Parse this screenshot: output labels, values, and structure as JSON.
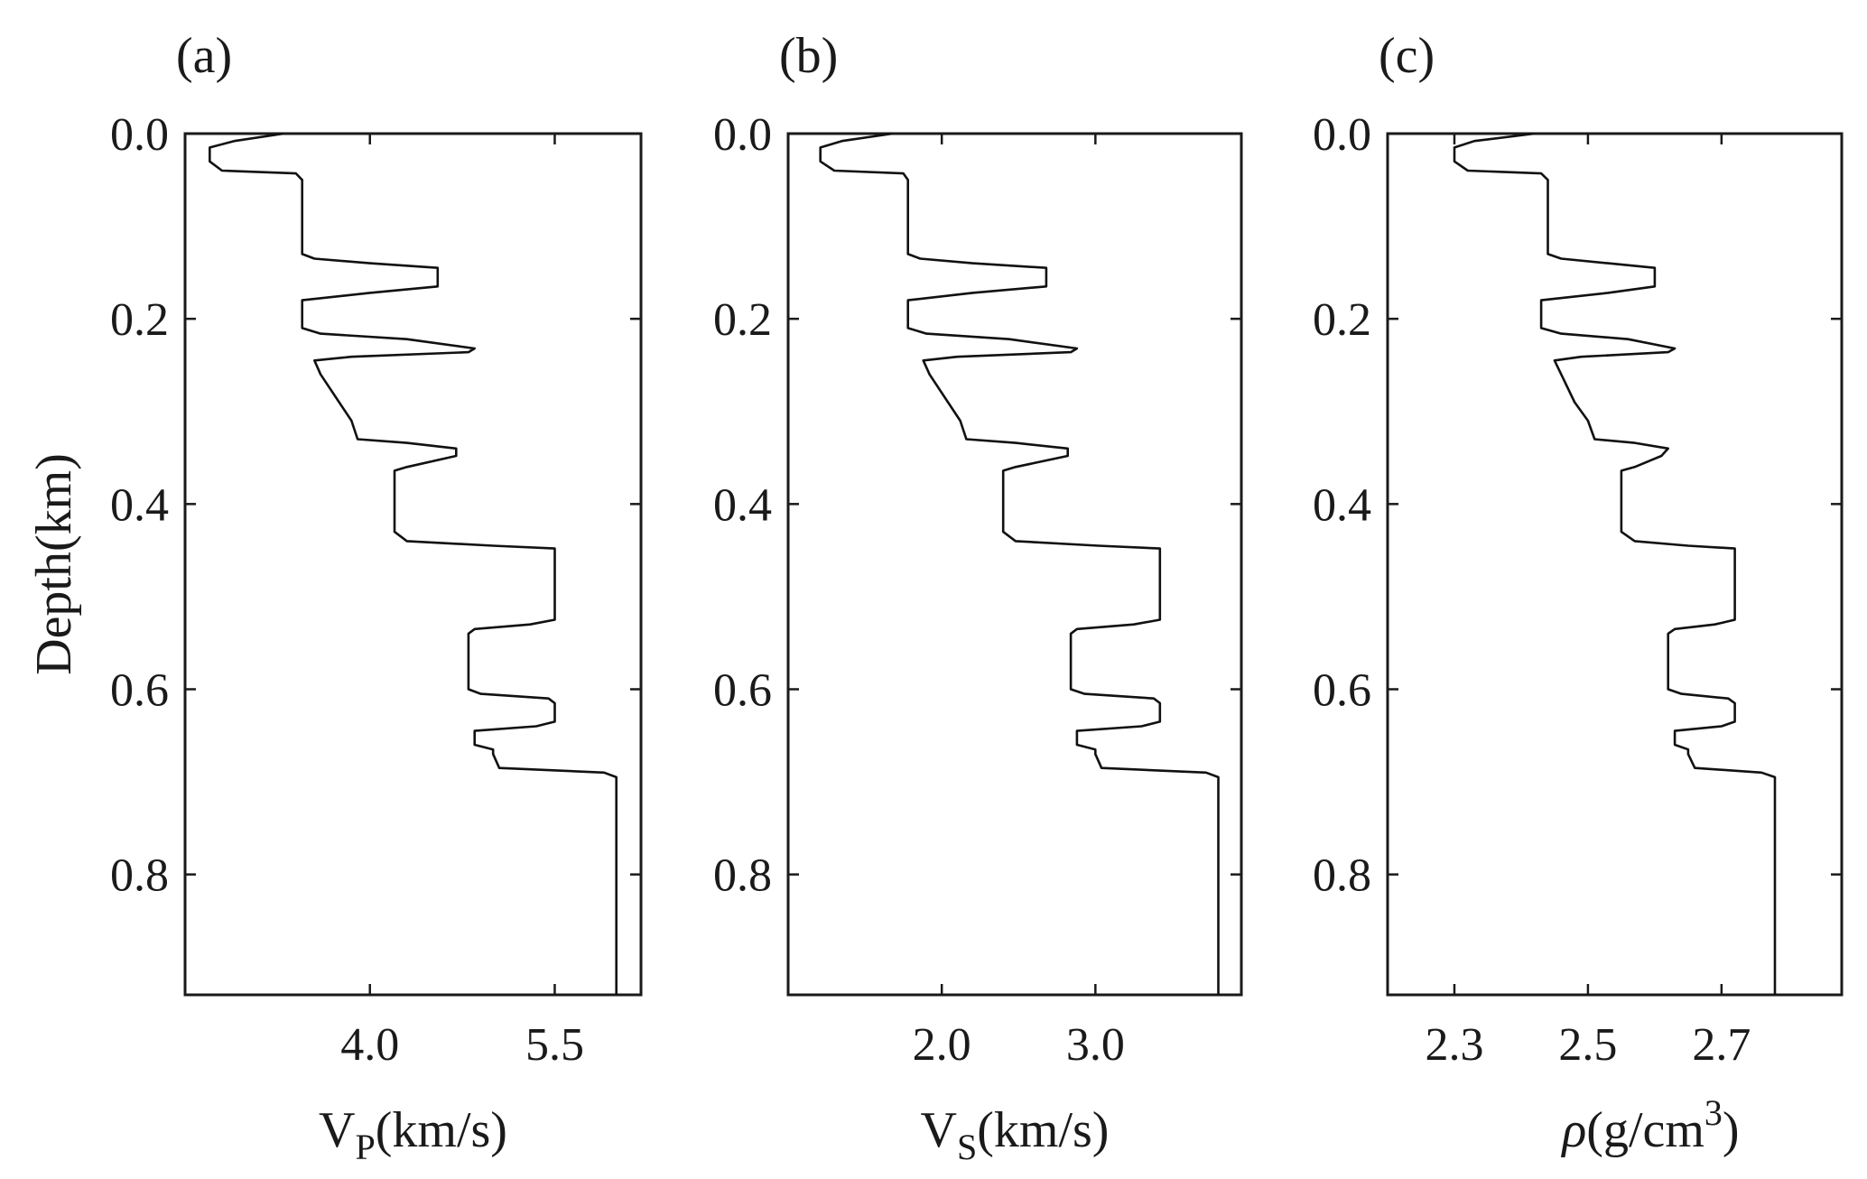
{
  "chart_data": [
    {
      "type": "line",
      "panel_label": "(a)",
      "ylabel": "Depth(km)",
      "xlabel_main": "V",
      "xlabel_sub": "P",
      "xlabel_rest": "(km/s)",
      "xlabel_sup": "",
      "xticks": [
        "4.0",
        "5.5"
      ],
      "xtick_values": [
        4.0,
        5.5
      ],
      "xlim": [
        2.5,
        6.2
      ],
      "yticks": [
        "0.0",
        "0.2",
        "0.4",
        "0.6",
        "0.8"
      ],
      "ytick_values": [
        0.0,
        0.2,
        0.4,
        0.6,
        0.8
      ],
      "ylim": [
        0.0,
        0.93
      ],
      "y_reversed": true,
      "grid": false,
      "series": [
        {
          "x": [
            3.3,
            2.9,
            2.7,
            2.7,
            2.8,
            3.4,
            3.45,
            3.45,
            3.45,
            3.55,
            4.0,
            4.55,
            4.55,
            4.0,
            3.45,
            3.45,
            3.45,
            3.6,
            4.3,
            4.85,
            4.8,
            3.85,
            3.55,
            3.6,
            3.75,
            3.85,
            3.9,
            4.3,
            4.7,
            4.7,
            4.3,
            4.2,
            4.2,
            4.2,
            4.3,
            5.0,
            5.5,
            5.5,
            5.5,
            5.5,
            5.3,
            4.85,
            4.8,
            4.8,
            4.8,
            4.9,
            5.45,
            5.5,
            5.5,
            5.35,
            4.85,
            4.85,
            5.0,
            5.0,
            5.05,
            5.9,
            6.0,
            6.0,
            6.0
          ],
          "y": [
            0.0,
            0.008,
            0.015,
            0.03,
            0.04,
            0.043,
            0.05,
            0.09,
            0.13,
            0.135,
            0.14,
            0.145,
            0.165,
            0.172,
            0.18,
            0.2,
            0.21,
            0.216,
            0.222,
            0.232,
            0.236,
            0.241,
            0.245,
            0.26,
            0.29,
            0.31,
            0.33,
            0.334,
            0.34,
            0.348,
            0.36,
            0.364,
            0.4,
            0.43,
            0.44,
            0.445,
            0.448,
            0.49,
            0.52,
            0.525,
            0.53,
            0.535,
            0.54,
            0.6,
            0.6,
            0.605,
            0.61,
            0.615,
            0.635,
            0.64,
            0.645,
            0.66,
            0.665,
            0.67,
            0.685,
            0.69,
            0.695,
            0.8,
            0.93
          ]
        }
      ]
    },
    {
      "type": "line",
      "panel_label": "(b)",
      "ylabel": "",
      "xlabel_main": "V",
      "xlabel_sub": "S",
      "xlabel_rest": "(km/s)",
      "xlabel_sup": "",
      "xticks": [
        "2.0",
        "3.0"
      ],
      "xtick_values": [
        2.0,
        3.0
      ],
      "xlim": [
        1.0,
        3.95
      ],
      "yticks": [
        "0.0",
        "0.2",
        "0.4",
        "0.6",
        "0.8"
      ],
      "ytick_values": [
        0.0,
        0.2,
        0.4,
        0.6,
        0.8
      ],
      "ylim": [
        0.0,
        0.93
      ],
      "y_reversed": true,
      "grid": false,
      "series": [
        {
          "x": [
            1.68,
            1.35,
            1.21,
            1.21,
            1.3,
            1.75,
            1.78,
            1.78,
            1.78,
            1.86,
            2.2,
            2.68,
            2.68,
            2.2,
            1.78,
            1.78,
            1.78,
            1.9,
            2.44,
            2.88,
            2.84,
            2.1,
            1.88,
            1.92,
            2.04,
            2.12,
            2.16,
            2.48,
            2.82,
            2.82,
            2.48,
            2.4,
            2.4,
            2.4,
            2.48,
            3.02,
            3.42,
            3.42,
            3.42,
            3.42,
            3.25,
            2.88,
            2.84,
            2.84,
            2.84,
            2.93,
            3.38,
            3.42,
            3.42,
            3.3,
            2.88,
            2.88,
            3.0,
            3.0,
            3.04,
            3.72,
            3.8,
            3.8,
            3.8
          ],
          "y": [
            0.0,
            0.008,
            0.015,
            0.03,
            0.04,
            0.043,
            0.05,
            0.09,
            0.13,
            0.135,
            0.14,
            0.145,
            0.165,
            0.172,
            0.18,
            0.2,
            0.21,
            0.216,
            0.222,
            0.232,
            0.236,
            0.241,
            0.245,
            0.26,
            0.29,
            0.31,
            0.33,
            0.334,
            0.34,
            0.348,
            0.36,
            0.364,
            0.4,
            0.43,
            0.44,
            0.445,
            0.448,
            0.49,
            0.52,
            0.525,
            0.53,
            0.535,
            0.54,
            0.6,
            0.6,
            0.605,
            0.61,
            0.615,
            0.635,
            0.64,
            0.645,
            0.66,
            0.665,
            0.67,
            0.685,
            0.69,
            0.695,
            0.8,
            0.93
          ]
        }
      ]
    },
    {
      "type": "line",
      "panel_label": "(c)",
      "ylabel": "",
      "xlabel_main": "ρ",
      "xlabel_sub": "",
      "xlabel_rest": "(g/cm",
      "xlabel_sup": "3",
      "xlabel_close": ")",
      "xticks": [
        "2.3",
        "2.5",
        "2.7"
      ],
      "xtick_values": [
        2.3,
        2.5,
        2.7
      ],
      "xlim": [
        2.2,
        2.88
      ],
      "yticks": [
        "0.0",
        "0.2",
        "0.4",
        "0.6",
        "0.8"
      ],
      "ytick_values": [
        0.0,
        0.2,
        0.4,
        0.6,
        0.8
      ],
      "ylim": [
        0.0,
        0.93
      ],
      "y_reversed": true,
      "grid": false,
      "series": [
        {
          "x": [
            2.42,
            2.33,
            2.3,
            2.3,
            2.32,
            2.43,
            2.44,
            2.44,
            2.44,
            2.46,
            2.53,
            2.6,
            2.6,
            2.53,
            2.43,
            2.43,
            2.43,
            2.46,
            2.56,
            2.63,
            2.62,
            2.49,
            2.45,
            2.46,
            2.48,
            2.5,
            2.51,
            2.57,
            2.62,
            2.61,
            2.57,
            2.55,
            2.55,
            2.55,
            2.57,
            2.65,
            2.72,
            2.72,
            2.72,
            2.72,
            2.69,
            2.63,
            2.62,
            2.62,
            2.62,
            2.64,
            2.71,
            2.72,
            2.72,
            2.7,
            2.63,
            2.63,
            2.65,
            2.65,
            2.66,
            2.76,
            2.78,
            2.78,
            2.78
          ],
          "y": [
            0.0,
            0.008,
            0.015,
            0.03,
            0.04,
            0.043,
            0.05,
            0.09,
            0.13,
            0.135,
            0.14,
            0.145,
            0.165,
            0.172,
            0.18,
            0.2,
            0.21,
            0.216,
            0.222,
            0.232,
            0.236,
            0.241,
            0.245,
            0.26,
            0.29,
            0.31,
            0.33,
            0.334,
            0.34,
            0.348,
            0.36,
            0.364,
            0.4,
            0.43,
            0.44,
            0.445,
            0.448,
            0.49,
            0.52,
            0.525,
            0.53,
            0.535,
            0.54,
            0.6,
            0.6,
            0.605,
            0.61,
            0.615,
            0.635,
            0.64,
            0.645,
            0.66,
            0.665,
            0.67,
            0.685,
            0.69,
            0.695,
            0.8,
            0.93
          ]
        }
      ]
    }
  ],
  "colors": {
    "line": "#111111",
    "axes": "#1a1a1a",
    "background": "#ffffff"
  }
}
